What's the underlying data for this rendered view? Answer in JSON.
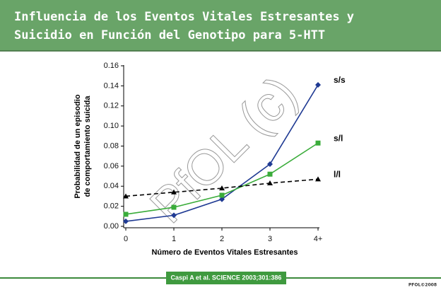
{
  "title": [
    "Influencia de los Eventos Vitales Estresantes y",
    "Suicidio en Función del Genotipo para 5-HTT"
  ],
  "watermark": "PfOL (c)",
  "citation": "Caspi A et al. SCIENCE 2003;301:386",
  "footer": "PFOL©2008",
  "chart_data": {
    "type": "line",
    "ylabel": [
      "Probabilidad de un episodio",
      "de comportamiento suicida"
    ],
    "xlabel": "Número de Eventos Vitales Estresantes",
    "categories": [
      "0",
      "1",
      "2",
      "3",
      "4+"
    ],
    "ylim": [
      0,
      0.16
    ],
    "yticks": [
      {
        "value": 0,
        "label": "0.00"
      },
      0.02,
      0.04,
      0.06,
      0.08,
      {
        "value": 0.1,
        "label": "0.10"
      },
      0.12,
      0.14,
      0.16
    ],
    "series": [
      {
        "name": "s/s",
        "color": "#1f3a93",
        "marker": "diamond",
        "dashed": false,
        "values": [
          0.005,
          0.011,
          0.027,
          0.062,
          0.141
        ]
      },
      {
        "name": "s/l",
        "color": "#3aac3a",
        "marker": "square",
        "dashed": false,
        "values": [
          0.012,
          0.019,
          0.031,
          0.052,
          0.083
        ]
      },
      {
        "name": "l/l",
        "color": "#000000",
        "marker": "triangle",
        "dashed": true,
        "values": [
          0.03,
          0.034,
          0.038,
          0.043,
          0.047
        ]
      }
    ]
  }
}
